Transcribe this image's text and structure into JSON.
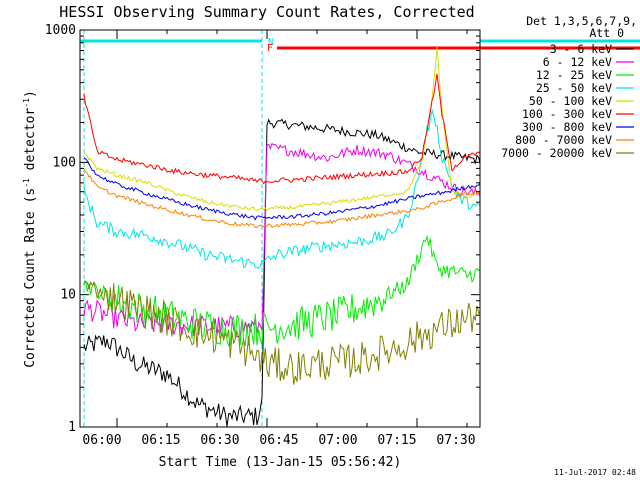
{
  "chart_data": {
    "type": "line",
    "title": "HESSI Observing Summary Count Rates, Corrected",
    "xlabel": "Start Time (13-Jan-15 05:56:42)",
    "ylabel": "Corrected Count Rate (s-1 detector-1)",
    "ylabel_parts": {
      "a": "Corrected Count Rate (s",
      "exp1": "-1",
      "b": " detector",
      "exp2": "-1",
      "c": ")"
    },
    "yscale": "log",
    "ylim": [
      1,
      1000
    ],
    "xlim_minutes": [
      -3.7,
      36.3
    ],
    "x_ticks": [
      {
        "m": 0,
        "label": "06:00"
      },
      {
        "m": 15,
        "label": "06:15"
      },
      {
        "m": 30,
        "label": "06:30"
      },
      {
        "m": 45,
        "label": "06:45"
      },
      {
        "m": 60,
        "label": "07:00"
      },
      {
        "m": 75,
        "label": "07:15"
      },
      {
        "m": 90,
        "label": "07:30"
      }
    ],
    "y_ticks": [
      {
        "v": 1,
        "label": "1"
      },
      {
        "v": 10,
        "label": "10"
      },
      {
        "v": 100,
        "label": "100"
      },
      {
        "v": 1000,
        "label": "1000"
      }
    ],
    "legend_header": [
      "Det 1,3,5,6,7,9,",
      "Att 0"
    ],
    "legend_placement": "right-outside",
    "footer_date": "11-Jul-2017 02:48",
    "flags": {
      "night_label": "N",
      "flare_label": "F",
      "night_color": "#00e5e5",
      "flare_color": "#ff0000",
      "night_segments": [
        [
          -3.7,
          14.5
        ],
        [
          76.3,
          92.8
        ]
      ],
      "flare_segments": [
        [
          16,
          71
        ],
        [
          72.5,
          74
        ]
      ],
      "dashed_lines": [
        -3.3,
        14.5,
        76.3,
        92.8
      ]
    },
    "series": [
      {
        "name": "3 - 6 keV",
        "color": "#000000",
        "noise": 0.035,
        "points": [
          [
            -3.3,
            4
          ],
          [
            -1,
            4.5
          ],
          [
            2,
            3
          ],
          [
            5,
            2.5
          ],
          [
            8,
            1.5
          ],
          [
            11,
            1.2
          ],
          [
            14,
            1.2
          ],
          [
            14.5,
            1.5
          ],
          [
            15,
            200
          ],
          [
            18,
            190
          ],
          [
            22,
            175
          ],
          [
            26,
            160
          ],
          [
            30,
            120
          ],
          [
            34,
            110
          ],
          [
            36,
            105
          ],
          [
            40,
            95
          ],
          [
            44,
            85
          ],
          [
            48,
            72
          ],
          [
            52,
            60
          ],
          [
            58,
            52
          ],
          [
            64,
            47
          ],
          [
            70,
            44
          ],
          [
            74,
            42
          ],
          [
            76.3,
            40
          ],
          [
            76.5,
            1.5
          ],
          [
            80,
            1.2
          ],
          [
            83,
            1.6
          ],
          [
            86,
            2.5
          ],
          [
            89,
            3.5
          ],
          [
            92.8,
            5
          ]
        ]
      },
      {
        "name": "6 - 12 keV",
        "color": "#ee00ee",
        "noise": 0.04,
        "points": [
          [
            -3.3,
            8
          ],
          [
            -1,
            7
          ],
          [
            2,
            6
          ],
          [
            5,
            6
          ],
          [
            8,
            5.8
          ],
          [
            11,
            5.7
          ],
          [
            14,
            5.7
          ],
          [
            14.5,
            6
          ],
          [
            15,
            130
          ],
          [
            18,
            120
          ],
          [
            21,
            108
          ],
          [
            24,
            125
          ],
          [
            27,
            115
          ],
          [
            30,
            90
          ],
          [
            32,
            75
          ],
          [
            34,
            62
          ],
          [
            37,
            56
          ],
          [
            40,
            52
          ],
          [
            45,
            47
          ],
          [
            50,
            42
          ],
          [
            56,
            35
          ],
          [
            62,
            31
          ],
          [
            68,
            28
          ],
          [
            72,
            27
          ],
          [
            75,
            25
          ],
          [
            76.3,
            26
          ],
          [
            76.5,
            6
          ],
          [
            80,
            6
          ],
          [
            85,
            5.8
          ],
          [
            89,
            6
          ],
          [
            92.8,
            6.5
          ]
        ]
      },
      {
        "name": "12 - 25 keV",
        "color": "#00ee00",
        "noise": 0.06,
        "points": [
          [
            -3.3,
            12
          ],
          [
            -1,
            10
          ],
          [
            2,
            8
          ],
          [
            5,
            7
          ],
          [
            8,
            6
          ],
          [
            11,
            5.5
          ],
          [
            14,
            5.5
          ],
          [
            18,
            6
          ],
          [
            22,
            7
          ],
          [
            26,
            9
          ],
          [
            29,
            12
          ],
          [
            31,
            28
          ],
          [
            32,
            16
          ],
          [
            35,
            14
          ],
          [
            38,
            16
          ],
          [
            42,
            18
          ],
          [
            45,
            19
          ],
          [
            48,
            18
          ],
          [
            50,
            15
          ],
          [
            53,
            10
          ],
          [
            56,
            6
          ],
          [
            60,
            5.5
          ],
          [
            65,
            5.5
          ],
          [
            70,
            5.5
          ],
          [
            74,
            5.5
          ],
          [
            76.3,
            5.5
          ],
          [
            78,
            6
          ],
          [
            82,
            8
          ],
          [
            86,
            10
          ],
          [
            89,
            13
          ],
          [
            92.8,
            20
          ]
        ]
      },
      {
        "name": "25 - 50 keV",
        "color": "#00e5e5",
        "noise": 0.045,
        "points": [
          [
            -3.3,
            60
          ],
          [
            -2,
            35
          ],
          [
            0,
            30
          ],
          [
            3,
            28
          ],
          [
            6,
            24
          ],
          [
            9,
            20
          ],
          [
            12,
            18
          ],
          [
            14,
            17
          ],
          [
            14.5,
            17
          ],
          [
            16,
            20
          ],
          [
            20,
            23
          ],
          [
            24,
            25
          ],
          [
            27,
            28
          ],
          [
            29,
            38
          ],
          [
            30,
            70
          ],
          [
            31,
            175
          ],
          [
            31.7,
            240
          ],
          [
            32.5,
            110
          ],
          [
            34,
            55
          ],
          [
            36,
            45
          ],
          [
            40,
            42
          ],
          [
            44,
            40
          ],
          [
            48,
            38
          ],
          [
            52,
            28
          ],
          [
            56,
            20
          ],
          [
            60,
            17
          ],
          [
            65,
            16
          ],
          [
            70,
            16
          ],
          [
            74,
            16
          ],
          [
            76.3,
            16
          ],
          [
            78,
            17
          ],
          [
            82,
            20
          ],
          [
            86,
            24
          ],
          [
            89,
            28
          ],
          [
            92.8,
            40
          ]
        ]
      },
      {
        "name": "50 - 100 keV",
        "color": "#dddd00",
        "noise": 0.015,
        "points": [
          [
            -3.3,
            120
          ],
          [
            -2,
            90
          ],
          [
            0,
            80
          ],
          [
            3,
            70
          ],
          [
            6,
            58
          ],
          [
            9,
            50
          ],
          [
            12,
            46
          ],
          [
            14,
            44
          ],
          [
            18,
            46
          ],
          [
            22,
            50
          ],
          [
            26,
            55
          ],
          [
            29,
            60
          ],
          [
            30.5,
            100
          ],
          [
            31.5,
            300
          ],
          [
            32,
            720
          ],
          [
            32.5,
            250
          ],
          [
            33.5,
            60
          ],
          [
            35,
            55
          ],
          [
            38,
            65
          ],
          [
            41,
            72
          ],
          [
            44,
            78
          ],
          [
            46,
            78
          ],
          [
            48,
            76
          ],
          [
            51,
            70
          ],
          [
            54,
            62
          ],
          [
            58,
            55
          ],
          [
            62,
            50
          ],
          [
            66,
            47
          ],
          [
            70,
            44
          ],
          [
            74,
            43
          ],
          [
            76.3,
            44
          ],
          [
            79,
            50
          ],
          [
            82,
            57
          ],
          [
            86,
            63
          ],
          [
            89,
            70
          ],
          [
            92.8,
            80
          ]
        ]
      },
      {
        "name": "100 - 300 keV",
        "color": "#ff0000",
        "noise": 0.02,
        "points": [
          [
            -3.3,
            320
          ],
          [
            -2,
            120
          ],
          [
            0,
            105
          ],
          [
            3,
            95
          ],
          [
            6,
            85
          ],
          [
            9,
            80
          ],
          [
            12,
            76
          ],
          [
            14,
            72
          ],
          [
            18,
            74
          ],
          [
            22,
            78
          ],
          [
            26,
            82
          ],
          [
            29,
            85
          ],
          [
            30.5,
            110
          ],
          [
            31.5,
            280
          ],
          [
            32,
            450
          ],
          [
            32.5,
            230
          ],
          [
            33.5,
            90
          ],
          [
            35,
            110
          ],
          [
            38,
            130
          ],
          [
            41,
            145
          ],
          [
            44,
            155
          ],
          [
            47,
            155
          ],
          [
            50,
            148
          ],
          [
            53,
            132
          ],
          [
            56,
            112
          ],
          [
            59,
            95
          ],
          [
            62,
            82
          ],
          [
            66,
            74
          ],
          [
            70,
            70
          ],
          [
            74,
            68
          ],
          [
            76.3,
            68
          ],
          [
            79,
            72
          ],
          [
            82,
            82
          ],
          [
            86,
            95
          ],
          [
            89,
            112
          ],
          [
            92.8,
            130
          ]
        ]
      },
      {
        "name": "300 - 800 keV",
        "color": "#0000ee",
        "noise": 0.015,
        "points": [
          [
            -3.3,
            110
          ],
          [
            -2,
            80
          ],
          [
            0,
            68
          ],
          [
            3,
            58
          ],
          [
            6,
            50
          ],
          [
            9,
            44
          ],
          [
            12,
            40
          ],
          [
            14,
            38
          ],
          [
            18,
            39
          ],
          [
            22,
            42
          ],
          [
            26,
            47
          ],
          [
            30,
            55
          ],
          [
            33,
            60
          ],
          [
            35,
            65
          ],
          [
            38,
            72
          ],
          [
            41,
            80
          ],
          [
            44,
            85
          ],
          [
            46,
            86
          ],
          [
            48,
            85
          ],
          [
            51,
            80
          ],
          [
            54,
            72
          ],
          [
            58,
            63
          ],
          [
            62,
            55
          ],
          [
            66,
            49
          ],
          [
            70,
            46
          ],
          [
            74,
            44
          ],
          [
            76.3,
            43
          ],
          [
            79,
            48
          ],
          [
            82,
            55
          ],
          [
            86,
            62
          ],
          [
            89,
            68
          ],
          [
            92.8,
            78
          ]
        ]
      },
      {
        "name": "800 - 7000 keV",
        "color": "#ff8000",
        "noise": 0.015,
        "points": [
          [
            -3.3,
            90
          ],
          [
            -2,
            65
          ],
          [
            0,
            56
          ],
          [
            3,
            48
          ],
          [
            6,
            42
          ],
          [
            9,
            37
          ],
          [
            12,
            34
          ],
          [
            14,
            33
          ],
          [
            18,
            34
          ],
          [
            22,
            36
          ],
          [
            26,
            40
          ],
          [
            30,
            44
          ],
          [
            33,
            52
          ],
          [
            35,
            58
          ],
          [
            38,
            65
          ],
          [
            41,
            72
          ],
          [
            44,
            76
          ],
          [
            46,
            77
          ],
          [
            48,
            75
          ],
          [
            51,
            70
          ],
          [
            54,
            62
          ],
          [
            58,
            54
          ],
          [
            62,
            47
          ],
          [
            66,
            42
          ],
          [
            70,
            39
          ],
          [
            74,
            37
          ],
          [
            76.3,
            36
          ],
          [
            79,
            40
          ],
          [
            82,
            47
          ],
          [
            86,
            55
          ],
          [
            89,
            62
          ],
          [
            92.8,
            72
          ]
        ]
      },
      {
        "name": "7000 - 20000 keV",
        "color": "#808000",
        "noise": 0.06,
        "points": [
          [
            -3.3,
            12
          ],
          [
            -1,
            10
          ],
          [
            2,
            8
          ],
          [
            5,
            6.5
          ],
          [
            8,
            5.2
          ],
          [
            11,
            4.5
          ],
          [
            13,
            3.8
          ],
          [
            15,
            3
          ],
          [
            18,
            2.8
          ],
          [
            20,
            3
          ],
          [
            24,
            3.2
          ],
          [
            28,
            4
          ],
          [
            32,
            5.5
          ],
          [
            36,
            7
          ],
          [
            40,
            10
          ],
          [
            44,
            12.5
          ],
          [
            47,
            13
          ],
          [
            50,
            12
          ],
          [
            53,
            9.5
          ],
          [
            56,
            6
          ],
          [
            58,
            4
          ],
          [
            61,
            3
          ],
          [
            65,
            2.8
          ],
          [
            70,
            2.8
          ],
          [
            74,
            2.8
          ],
          [
            76.3,
            2.9
          ],
          [
            79,
            4
          ],
          [
            82,
            5.5
          ],
          [
            86,
            7
          ],
          [
            89,
            9
          ],
          [
            92.8,
            12
          ]
        ]
      }
    ]
  }
}
